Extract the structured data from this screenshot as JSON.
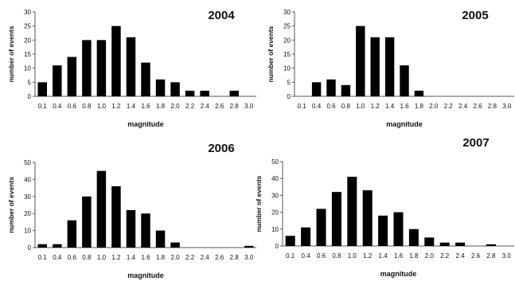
{
  "chart_data": [
    {
      "type": "bar",
      "title": "2004",
      "xlabel": "magnitude",
      "ylabel": "number of events",
      "categories": [
        "0.1",
        "0.4",
        "0.6",
        "0.8",
        "1.0",
        "1.2",
        "1.4",
        "1.6",
        "1.8",
        "2.0",
        "2.2",
        "2.4",
        "2.6",
        "2.8",
        "3.0"
      ],
      "values": [
        5,
        11,
        14,
        20,
        20,
        25,
        21,
        12,
        6,
        5,
        2,
        2,
        0,
        2,
        0
      ],
      "ylim": [
        0,
        30
      ],
      "yticks": [
        "0",
        "5",
        "10",
        "15",
        "20",
        "25",
        "30"
      ],
      "grid": false,
      "legend": "none"
    },
    {
      "type": "bar",
      "title": "2005",
      "xlabel": "magnitude",
      "ylabel": "number of events",
      "categories": [
        "0.1",
        "0.4",
        "0.6",
        "0.8",
        "1.0",
        "1.2",
        "1.4",
        "1.6",
        "1.8",
        "2.0",
        "2.2",
        "2.4",
        "2.6",
        "2.8",
        "3.0"
      ],
      "values": [
        0,
        5,
        6,
        4,
        25,
        21,
        21,
        11,
        2,
        0,
        0,
        0,
        0,
        0,
        0
      ],
      "ylim": [
        0,
        30
      ],
      "yticks": [
        "0",
        "5",
        "10",
        "15",
        "20",
        "25",
        "30"
      ],
      "grid": false,
      "legend": "none"
    },
    {
      "type": "bar",
      "title": "2006",
      "xlabel": "magnitude",
      "ylabel": "number of events",
      "categories": [
        "0.1",
        "0.4",
        "0.6",
        "0.8",
        "1.0",
        "1.2",
        "1.4",
        "1.6",
        "1.8",
        "2.0",
        "2.2",
        "2.4",
        "2.6",
        "2.8",
        "3.0"
      ],
      "values": [
        2,
        2,
        16,
        30,
        45,
        36,
        22,
        20,
        10,
        3,
        0,
        0,
        0,
        0,
        1
      ],
      "ylim": [
        0,
        50
      ],
      "yticks": [
        "0",
        "10",
        "20",
        "30",
        "40",
        "50"
      ],
      "grid": false,
      "legend": "none"
    },
    {
      "type": "bar",
      "title": "2007",
      "xlabel": "magnitude",
      "ylabel": "number of events",
      "categories": [
        "0.1",
        "0.4",
        "0.6",
        "0.8",
        "1.0",
        "1.2",
        "1.4",
        "1.6",
        "1.8",
        "2.0",
        "2.2",
        "2.4",
        "2.6",
        "2.8",
        "3.0"
      ],
      "values": [
        6,
        11,
        22,
        32,
        41,
        33,
        18,
        20,
        10,
        5,
        2,
        2,
        0,
        1,
        0
      ],
      "ylim": [
        0,
        50
      ],
      "yticks": [
        "0",
        "10",
        "20",
        "30",
        "40",
        "50"
      ],
      "grid": false,
      "legend": "none"
    }
  ]
}
